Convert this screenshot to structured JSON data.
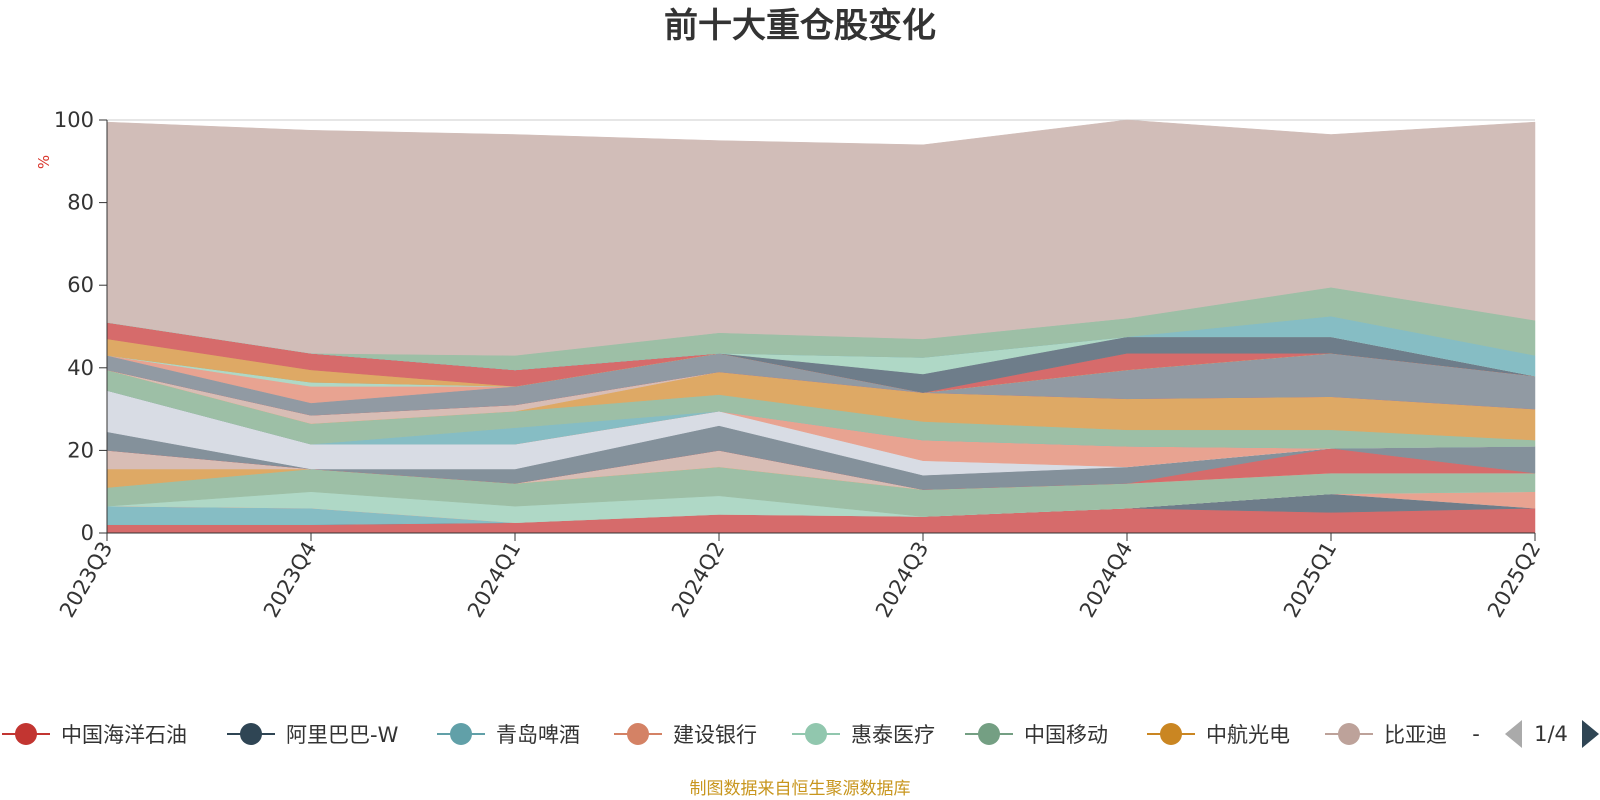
{
  "chart_data": {
    "type": "area",
    "stacked": true,
    "title": "前十大重仓股变化",
    "ylabel": "%",
    "ylim": [
      0,
      100
    ],
    "yticks": [
      0,
      20,
      40,
      60,
      80,
      100
    ],
    "categories": [
      "2023Q3",
      "2023Q4",
      "2024Q1",
      "2024Q2",
      "2024Q3",
      "2024Q4",
      "2025Q1",
      "2025Q2"
    ],
    "series": [
      {
        "name": "中国海洋石油",
        "color": "#d66b6b",
        "values": [
          2,
          2,
          2.5,
          4.5,
          4,
          6,
          5,
          6
        ]
      },
      {
        "name": "阿里巴巴-W",
        "color": "#6e7d8a",
        "values": [
          0,
          0,
          0,
          0,
          0,
          0,
          4.5,
          0
        ]
      },
      {
        "name": "青岛啤酒",
        "color": "#86bdc4",
        "values": [
          4.5,
          4,
          0,
          0,
          0,
          0,
          0,
          0
        ]
      },
      {
        "name": "建设银行",
        "color": "#e8a391",
        "values": [
          0,
          0,
          0,
          0,
          0,
          0,
          0,
          4
        ]
      },
      {
        "name": "惠泰医疗",
        "color": "#afd8c6",
        "values": [
          0,
          4,
          4,
          4.5,
          0,
          0,
          0,
          0
        ]
      },
      {
        "name": "中国移动",
        "color": "#9dbfa6",
        "values": [
          4.5,
          5.5,
          5.5,
          7,
          6.5,
          6,
          5,
          4.5
        ]
      },
      {
        "name": "中航光电",
        "color": "#dea965",
        "values": [
          4.5,
          0,
          0,
          0,
          0,
          0,
          0,
          0
        ]
      },
      {
        "name": "比亚迪",
        "color": "#d8bdb5",
        "values": [
          4.5,
          0,
          0,
          4,
          0,
          0,
          0,
          0
        ]
      },
      {
        "name": "中国海洋石油",
        "color": "#d66b6b",
        "values": [
          0,
          0,
          0,
          0,
          0,
          0,
          6,
          0
        ]
      },
      {
        "name": "阿里巴巴-W",
        "color": "#84919b",
        "values": [
          4.5,
          0,
          3.5,
          6,
          3.5,
          4,
          0,
          6.5
        ]
      },
      {
        "name": "青岛啤酒",
        "color": "#d8dce4",
        "values": [
          10,
          6,
          6,
          3.5,
          3.5,
          0,
          0,
          0
        ]
      },
      {
        "name": "建设银行",
        "color": "#e8a391",
        "values": [
          0,
          0,
          0,
          0,
          5,
          5,
          0,
          0
        ]
      },
      {
        "name": "惠泰医疗",
        "color": "#86bdc4",
        "values": [
          0,
          0,
          4,
          0,
          0,
          0,
          0,
          0
        ]
      },
      {
        "name": "中国移动",
        "color": "#9dbfa6",
        "values": [
          5,
          5,
          4,
          4,
          4.5,
          4,
          4.5,
          1.5
        ]
      },
      {
        "name": "中航光电",
        "color": "#dea965",
        "values": [
          0,
          0,
          0,
          5.5,
          7,
          7.5,
          8,
          7.5
        ]
      },
      {
        "name": "比亚迪",
        "color": "#d8bdb5",
        "values": [
          0,
          2,
          1.5,
          0,
          0,
          0,
          0,
          0
        ]
      },
      {
        "name": "中国海洋石油",
        "color": "#d66b6b",
        "values": [
          0,
          0,
          0,
          0,
          0,
          0,
          0,
          0
        ]
      },
      {
        "name": "阿里巴巴-W",
        "color": "#919aa3",
        "values": [
          3.5,
          3,
          4.5,
          4.5,
          0,
          7,
          10.5,
          8
        ]
      },
      {
        "name": "青岛啤酒",
        "color": "#a0a0a8",
        "values": [
          0,
          0,
          0,
          0,
          0,
          0,
          0,
          0
        ]
      },
      {
        "name": "建设银行",
        "color": "#e8a391",
        "values": [
          0,
          4,
          0,
          0,
          0,
          0,
          0,
          0
        ]
      },
      {
        "name": "惠泰医疗",
        "color": "#afd8c6",
        "values": [
          0,
          1,
          0,
          0,
          0,
          0,
          0,
          0
        ]
      },
      {
        "name": "中国移动",
        "color": "#9dbfa6",
        "values": [
          0,
          0,
          0,
          0,
          0,
          0,
          0,
          0
        ]
      },
      {
        "name": "中航光电",
        "color": "#dea965",
        "values": [
          4,
          3,
          0,
          0,
          0,
          0,
          0,
          0
        ]
      },
      {
        "name": "中国海洋石油",
        "color": "#d66b6b",
        "values": [
          4,
          4,
          4,
          0,
          0,
          4,
          0,
          0
        ]
      },
      {
        "name": "阿里巴巴-W",
        "color": "#6e7d8a",
        "values": [
          0,
          0,
          0,
          0,
          4.5,
          4,
          4,
          0
        ]
      },
      {
        "name": "惠泰医疗",
        "color": "#afd8c6",
        "values": [
          0,
          0,
          0,
          0,
          4,
          0,
          0,
          0
        ]
      },
      {
        "name": "青岛啤酒",
        "color": "#86bdc4",
        "values": [
          0,
          0,
          0,
          0,
          0,
          0,
          5,
          5
        ]
      },
      {
        "name": "中国移动",
        "color": "#9dbfa6",
        "values": [
          0,
          0,
          3.5,
          5,
          4.5,
          4.5,
          7,
          8.5
        ]
      },
      {
        "name": "比亚迪",
        "color": "#d1bdb8",
        "values": [
          48.5,
          54,
          53.5,
          46.5,
          47,
          48,
          37,
          48
        ]
      }
    ],
    "legend": {
      "position": "bottom",
      "entries": [
        {
          "name": "中国海洋石油",
          "color": "#c23531"
        },
        {
          "name": "阿里巴巴-W",
          "color": "#2f4554"
        },
        {
          "name": "青岛啤酒",
          "color": "#61a0a8"
        },
        {
          "name": "建设银行",
          "color": "#d48265"
        },
        {
          "name": "惠泰医疗",
          "color": "#91c7ae"
        },
        {
          "name": "中国移动",
          "color": "#749f83"
        },
        {
          "name": "中航光电",
          "color": "#ca8622"
        },
        {
          "name": "比亚迪",
          "color": "#bda29a"
        }
      ],
      "more": "-",
      "page": "1/4"
    },
    "footer": "制图数据来自恒生聚源数据库"
  }
}
